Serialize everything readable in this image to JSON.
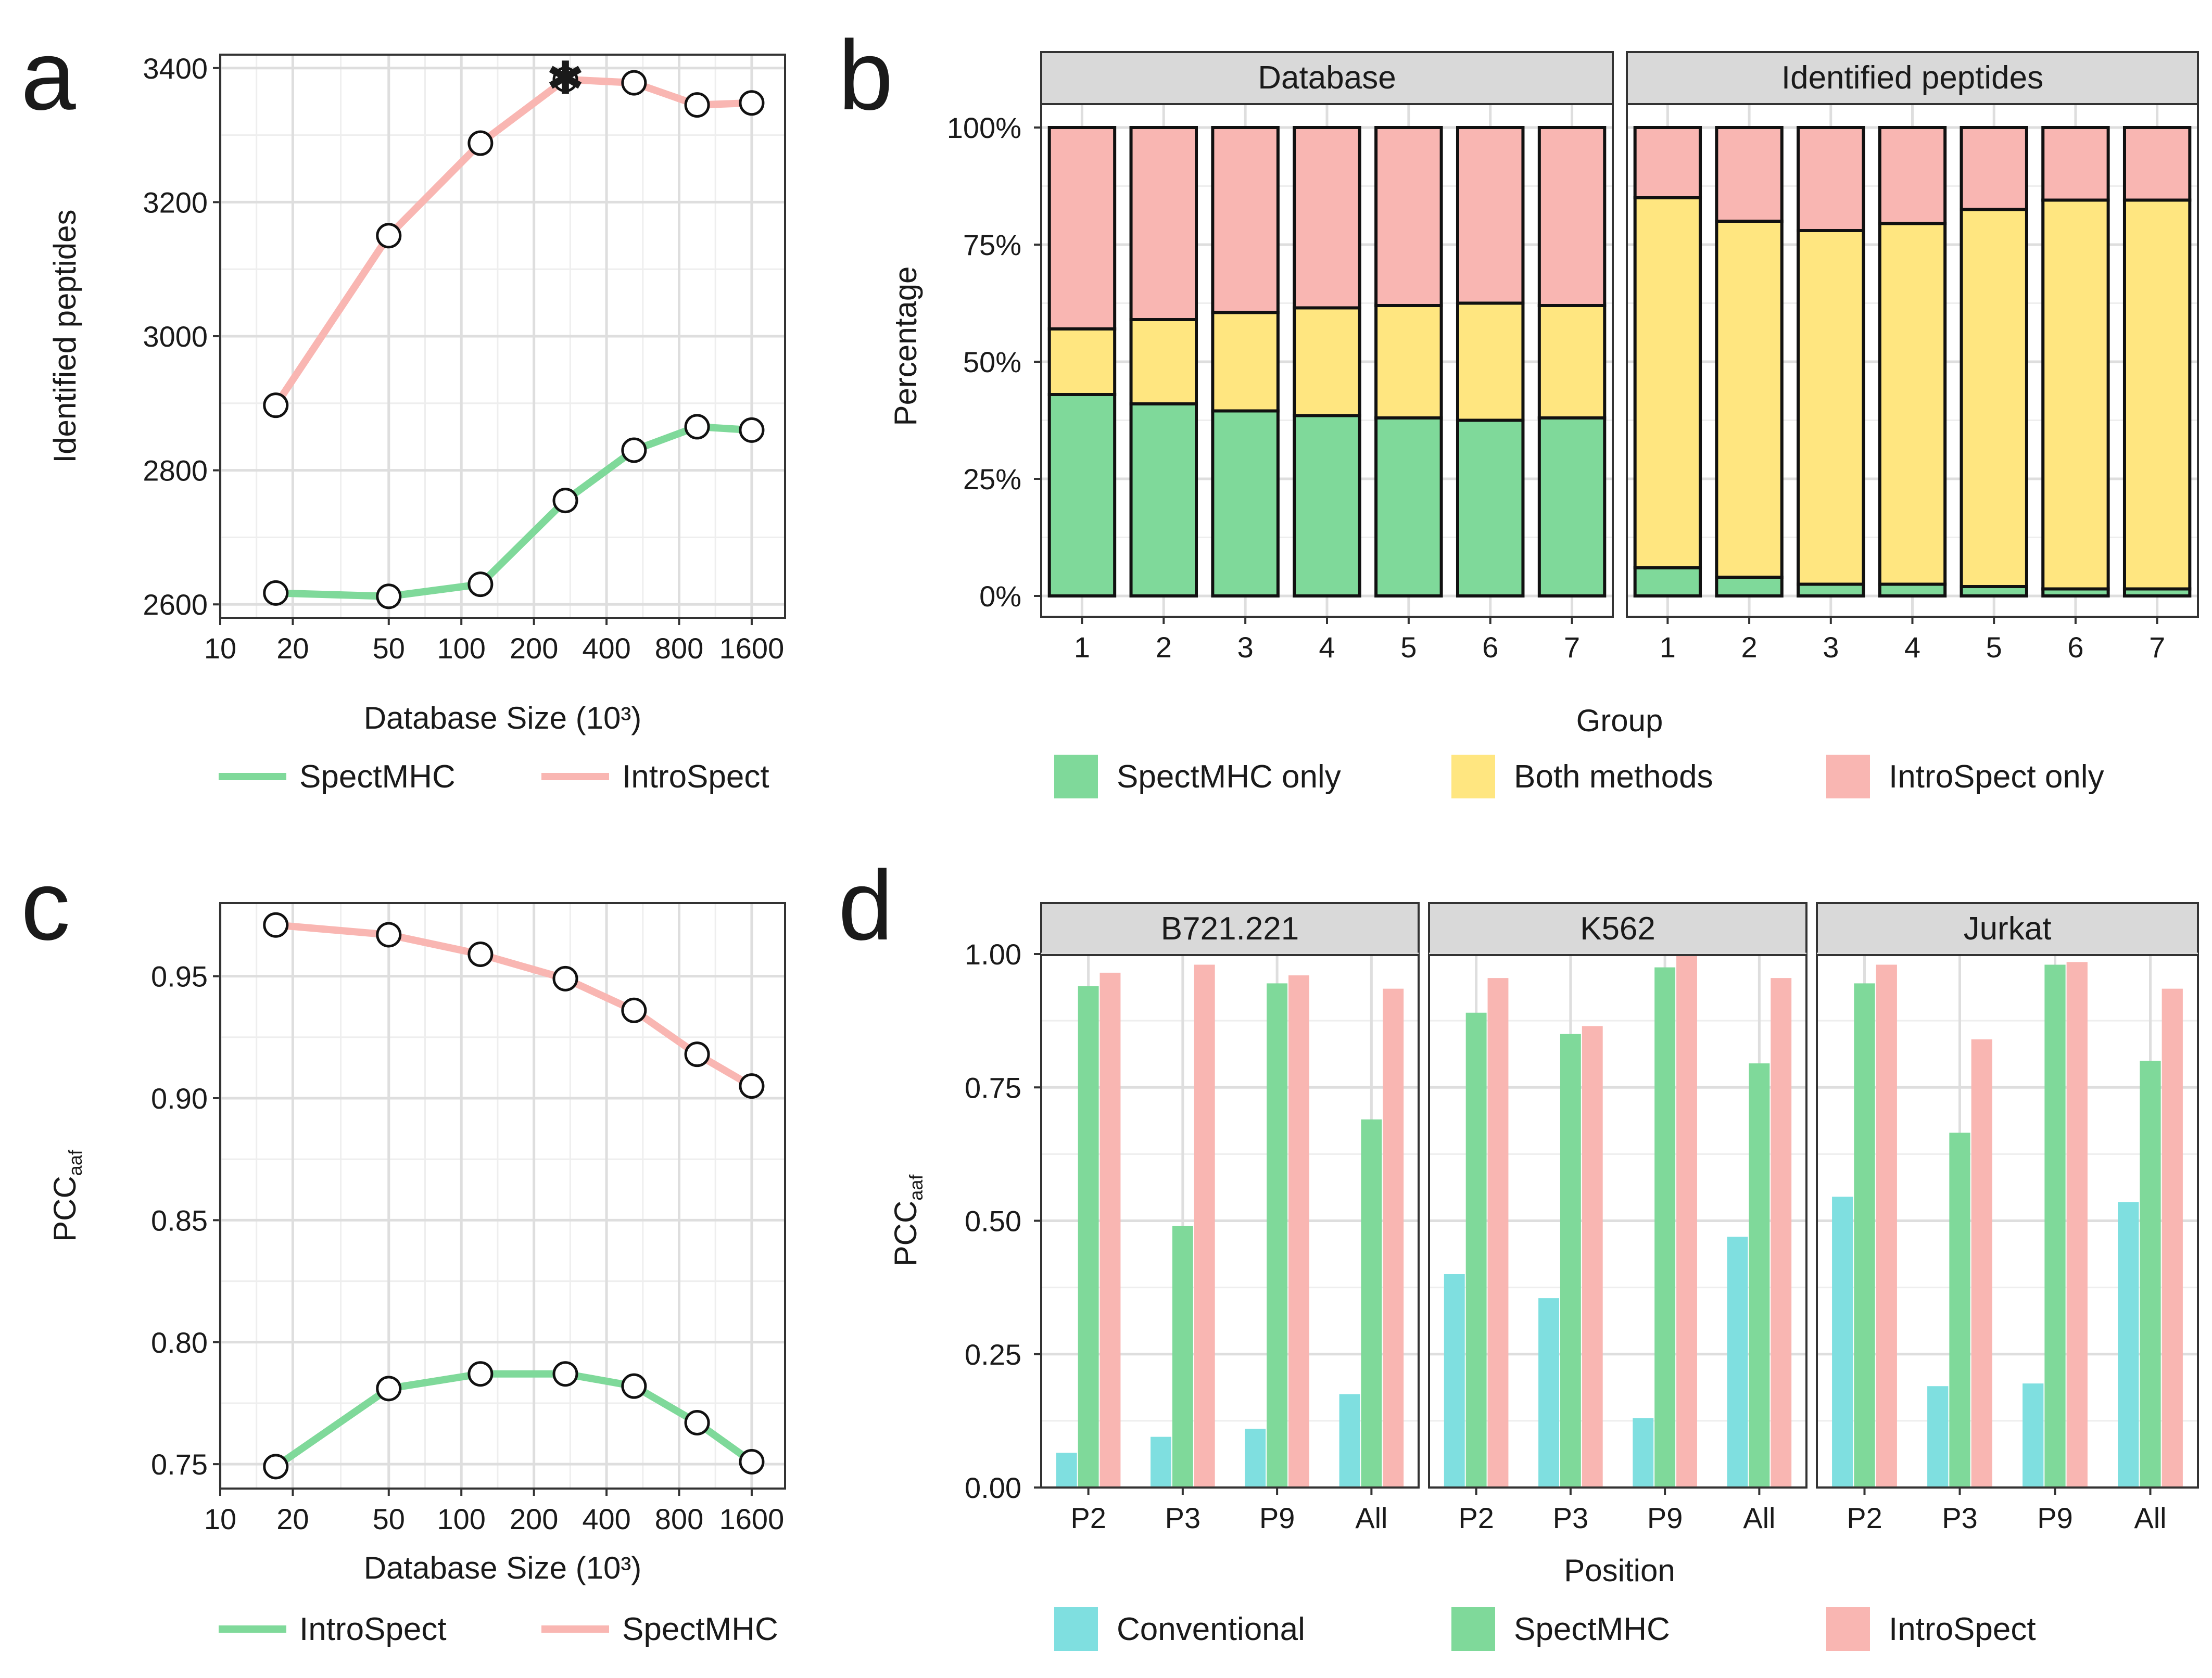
{
  "colors": {
    "green": "#7fd99a",
    "pink": "#f9b6b2",
    "yellow": "#ffe680",
    "cyan": "#7fdfe0"
  },
  "panels": {
    "a": {
      "letter": "a"
    },
    "b": {
      "letter": "b"
    },
    "c": {
      "letter": "c"
    },
    "d": {
      "letter": "d"
    }
  },
  "chart_data": [
    {
      "id": "a",
      "type": "line",
      "x": [
        17,
        50,
        120,
        270,
        520,
        950,
        1600
      ],
      "xscale": "log",
      "xlim": [
        10,
        2200
      ],
      "xticks": [
        10,
        20,
        50,
        100,
        200,
        400,
        800,
        1600
      ],
      "xtick_labels": [
        "10",
        "20",
        "50",
        "100",
        "200",
        "400",
        "800",
        "1600"
      ],
      "ylim": [
        2580,
        3420
      ],
      "yticks": [
        2600,
        2800,
        3000,
        3200,
        3400
      ],
      "ytick_labels": [
        "2600",
        "2800",
        "3000",
        "3200",
        "3400"
      ],
      "xlabel": "Database Size (10³)",
      "ylabel": "Identified peptides",
      "series": [
        {
          "name": "SpectMHC",
          "color": "#7fd99a",
          "values": [
            2617,
            2612,
            2630,
            2755,
            2830,
            2865,
            2860
          ]
        },
        {
          "name": "IntroSpect",
          "color": "#f9b6b2",
          "values": [
            2897,
            3150,
            3288,
            3383,
            3378,
            3345,
            3348
          ]
        }
      ],
      "annotations": [
        {
          "text": "✱",
          "x": 270,
          "y": 3383
        }
      ],
      "legend": [
        "SpectMHC",
        "IntroSpect"
      ]
    },
    {
      "id": "b",
      "type": "bar",
      "stacked": true,
      "ylabel": "Percentage",
      "xlabel": "Group",
      "yticks": [
        0,
        25,
        50,
        75,
        100
      ],
      "ytick_labels": [
        "0%",
        "25%",
        "50%",
        "75%",
        "100%"
      ],
      "facets": [
        {
          "title": "Database",
          "categories": [
            "1",
            "2",
            "3",
            "4",
            "5",
            "6",
            "7"
          ],
          "series": [
            {
              "name": "SpectMHC only",
              "values": [
                43,
                41,
                39.5,
                38.5,
                38,
                37.5,
                38
              ]
            },
            {
              "name": "Both methods",
              "values": [
                14,
                18,
                21,
                23,
                24,
                25,
                24
              ]
            },
            {
              "name": "IntroSpect only",
              "values": [
                43,
                41,
                39.5,
                38.5,
                38,
                37.5,
                38
              ]
            }
          ]
        },
        {
          "title": "Identified peptides",
          "categories": [
            "1",
            "2",
            "3",
            "4",
            "5",
            "6",
            "7"
          ],
          "series": [
            {
              "name": "SpectMHC only",
              "values": [
                6,
                4,
                2.5,
                2.5,
                2,
                1.5,
                1.5
              ]
            },
            {
              "name": "Both methods",
              "values": [
                79,
                76,
                75.5,
                77,
                80.5,
                83,
                83
              ]
            },
            {
              "name": "IntroSpect only",
              "values": [
                15,
                20,
                22,
                20.5,
                17.5,
                15.5,
                15.5
              ]
            }
          ]
        }
      ],
      "legend": [
        "SpectMHC only",
        "Both methods",
        "IntroSpect only"
      ]
    },
    {
      "id": "c",
      "type": "line",
      "x": [
        17,
        50,
        120,
        270,
        520,
        950,
        1600
      ],
      "xscale": "log",
      "xlim": [
        10,
        2200
      ],
      "xticks": [
        10,
        20,
        50,
        100,
        200,
        400,
        800,
        1600
      ],
      "xtick_labels": [
        "10",
        "20",
        "50",
        "100",
        "200",
        "400",
        "800",
        "1600"
      ],
      "ylim": [
        0.74,
        0.98
      ],
      "yticks": [
        0.75,
        0.8,
        0.85,
        0.9,
        0.95
      ],
      "ytick_labels": [
        "0.75",
        "0.80",
        "0.85",
        "0.90",
        "0.95"
      ],
      "xlabel": "Database Size (10³)",
      "ylabel": "PCC",
      "ylabel_sub": "aaf",
      "series": [
        {
          "name": "IntroSpect",
          "color": "#7fd99a",
          "values": [
            0.749,
            0.781,
            0.787,
            0.787,
            0.782,
            0.767,
            0.751
          ]
        },
        {
          "name": "SpectMHC",
          "color": "#f9b6b2",
          "values": [
            0.971,
            0.967,
            0.959,
            0.949,
            0.936,
            0.918,
            0.905
          ]
        }
      ],
      "legend": [
        "IntroSpect",
        "SpectMHC"
      ]
    },
    {
      "id": "d",
      "type": "bar",
      "grouped": true,
      "ylim": [
        0,
        1.0
      ],
      "yticks": [
        0,
        0.25,
        0.5,
        0.75,
        1.0
      ],
      "ytick_labels": [
        "0.00",
        "0.25",
        "0.50",
        "0.75",
        "1.00"
      ],
      "xlabel": "Position",
      "ylabel": "PCC",
      "ylabel_sub": "aaf",
      "facets": [
        {
          "title": "B721.221",
          "categories": [
            "P2",
            "P3",
            "P9",
            "All"
          ],
          "series": [
            {
              "name": "Conventional",
              "values": [
                0.065,
                0.095,
                0.11,
                0.175
              ]
            },
            {
              "name": "SpectMHC",
              "values": [
                0.94,
                0.49,
                0.945,
                0.69
              ]
            },
            {
              "name": "IntroSpect",
              "values": [
                0.965,
                0.98,
                0.96,
                0.935
              ]
            }
          ]
        },
        {
          "title": "K562",
          "categories": [
            "P2",
            "P3",
            "P9",
            "All"
          ],
          "series": [
            {
              "name": "Conventional",
              "values": [
                0.4,
                0.355,
                0.13,
                0.47
              ]
            },
            {
              "name": "SpectMHC",
              "values": [
                0.89,
                0.85,
                0.975,
                0.795
              ]
            },
            {
              "name": "IntroSpect",
              "values": [
                0.955,
                0.865,
                1.0,
                0.955
              ]
            }
          ]
        },
        {
          "title": "Jurkat",
          "categories": [
            "P2",
            "P3",
            "P9",
            "All"
          ],
          "series": [
            {
              "name": "Conventional",
              "values": [
                0.545,
                0.19,
                0.195,
                0.535
              ]
            },
            {
              "name": "SpectMHC",
              "values": [
                0.945,
                0.665,
                0.98,
                0.8
              ]
            },
            {
              "name": "IntroSpect",
              "values": [
                0.98,
                0.84,
                0.985,
                0.935
              ]
            }
          ]
        }
      ],
      "legend": [
        "Conventional",
        "SpectMHC",
        "IntroSpect"
      ]
    }
  ]
}
